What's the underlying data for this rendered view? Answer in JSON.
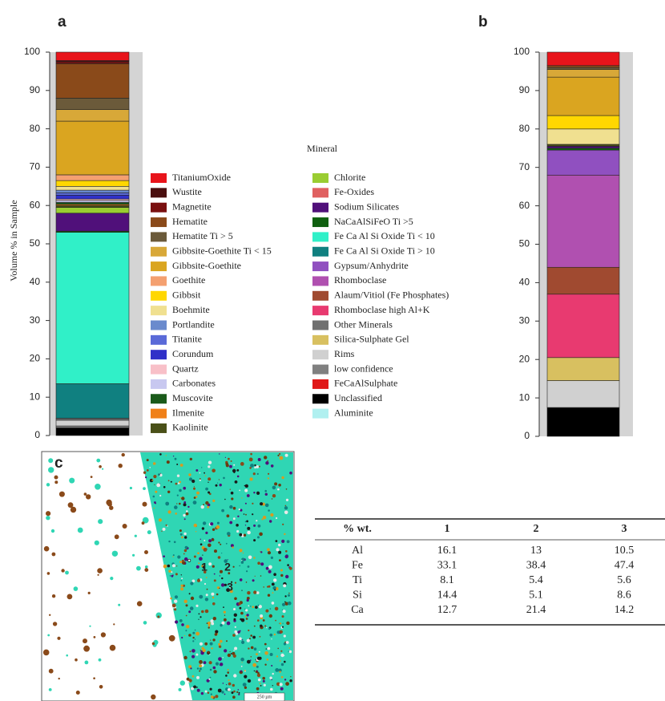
{
  "chart_data": {
    "type": "bar",
    "stacked": true,
    "categories": [
      "a",
      "b"
    ],
    "ylabel": "Volume % in Sample",
    "ylim": [
      0,
      100
    ],
    "yticks": [
      0,
      10,
      20,
      30,
      40,
      50,
      60,
      70,
      80,
      90,
      100
    ],
    "legend_title": "Mineral",
    "series": [
      {
        "name": "TitaniumOxide",
        "color": "#e8141b",
        "values": [
          2.2,
          3.5
        ]
      },
      {
        "name": "Wustite",
        "color": "#4a0f0f",
        "values": [
          0.3,
          0
        ]
      },
      {
        "name": "Magnetite",
        "color": "#7a1010",
        "values": [
          0.5,
          0
        ]
      },
      {
        "name": "Hematite",
        "color": "#8a4a1a",
        "values": [
          9,
          0.5
        ]
      },
      {
        "name": "Hematite Ti > 5",
        "color": "#6b5a3a",
        "values": [
          3,
          0.5
        ]
      },
      {
        "name": "Gibbsite-Goethite Ti < 15",
        "color": "#d8a838",
        "values": [
          3,
          2
        ]
      },
      {
        "name": "Gibbsite-Goethite",
        "color": "#daa520",
        "values": [
          14,
          10
        ]
      },
      {
        "name": "Goethite",
        "color": "#f4a070",
        "values": [
          1.5,
          0
        ]
      },
      {
        "name": "Gibbsit",
        "color": "#ffd700",
        "values": [
          1.5,
          3.5
        ]
      },
      {
        "name": "Boehmite",
        "color": "#f0e090",
        "values": [
          1,
          4
        ]
      },
      {
        "name": "Portlandite",
        "color": "#6a8acd",
        "values": [
          0.7,
          0
        ]
      },
      {
        "name": "Titanite",
        "color": "#5a6ad8",
        "values": [
          0.6,
          0
        ]
      },
      {
        "name": "Corundum",
        "color": "#3030c8",
        "values": [
          1,
          0
        ]
      },
      {
        "name": "Quartz",
        "color": "#f8c0c8",
        "values": [
          0.4,
          0
        ]
      },
      {
        "name": "Carbonates",
        "color": "#c8c8f0",
        "values": [
          0.5,
          0
        ]
      },
      {
        "name": "Muscovite",
        "color": "#1a5a1a",
        "values": [
          0.5,
          0
        ]
      },
      {
        "name": "Ilmenite",
        "color": "#f08018",
        "values": [
          0.3,
          0
        ]
      },
      {
        "name": "Kaolinite",
        "color": "#4a5018",
        "values": [
          0.5,
          0.5
        ]
      },
      {
        "name": "Chlorite",
        "color": "#9acd32",
        "values": [
          1.5,
          0
        ]
      },
      {
        "name": "Fe-Oxides",
        "color": "#e06060",
        "values": [
          0,
          0
        ]
      },
      {
        "name": "Sodium Silicates",
        "color": "#50107a",
        "values": [
          4.7,
          0.5
        ]
      },
      {
        "name": "NaCaAlSiFeO Ti >5",
        "color": "#106010",
        "values": [
          0.3,
          0.5
        ]
      },
      {
        "name": "Fe Ca Al Si Oxide Ti < 10",
        "color": "#30f0c8",
        "values": [
          39.5,
          0
        ]
      },
      {
        "name": "Fe Ca Al Si Oxide Ti > 10",
        "color": "#108080",
        "values": [
          9,
          0
        ]
      },
      {
        "name": "Gypsum/Anhydrite",
        "color": "#9050c0",
        "values": [
          0,
          6.5
        ]
      },
      {
        "name": "Rhomboclase",
        "color": "#b050b0",
        "values": [
          0,
          24
        ]
      },
      {
        "name": "Alaum/Vitiol (Fe Phosphates)",
        "color": "#a04a30",
        "values": [
          0,
          7
        ]
      },
      {
        "name": "Rhomboclase high Al+K",
        "color": "#e83a70",
        "values": [
          0,
          16.5
        ]
      },
      {
        "name": "Other Minerals",
        "color": "#707070",
        "values": [
          0.5,
          0
        ]
      },
      {
        "name": "Silica-Sulphate Gel",
        "color": "#d8c060",
        "values": [
          0,
          6
        ]
      },
      {
        "name": "Rims",
        "color": "#d0d0d0",
        "values": [
          1.5,
          7
        ]
      },
      {
        "name": "low confidence",
        "color": "#808080",
        "values": [
          0.5,
          0
        ]
      },
      {
        "name": "FeCaAlSulphate",
        "color": "#e01818",
        "values": [
          0,
          0
        ]
      },
      {
        "name": "Unclassified",
        "color": "#000000",
        "values": [
          2,
          7.5
        ]
      },
      {
        "name": "Aluminite",
        "color": "#b0f0f0",
        "values": [
          0,
          0
        ]
      }
    ]
  },
  "image": {
    "label": "c",
    "points": [
      "1",
      "2",
      "3"
    ],
    "scale_bar": "250 µm"
  },
  "table": {
    "columns": [
      "% wt.",
      "1",
      "2",
      "3"
    ],
    "rows": [
      [
        "Al",
        16.1,
        13,
        10.5
      ],
      [
        "Fe",
        33.1,
        38.4,
        47.4
      ],
      [
        "Ti",
        8.1,
        5.4,
        5.6
      ],
      [
        "Si",
        14.4,
        5.1,
        8.6
      ],
      [
        "Ca",
        12.7,
        21.4,
        14.2
      ]
    ]
  }
}
